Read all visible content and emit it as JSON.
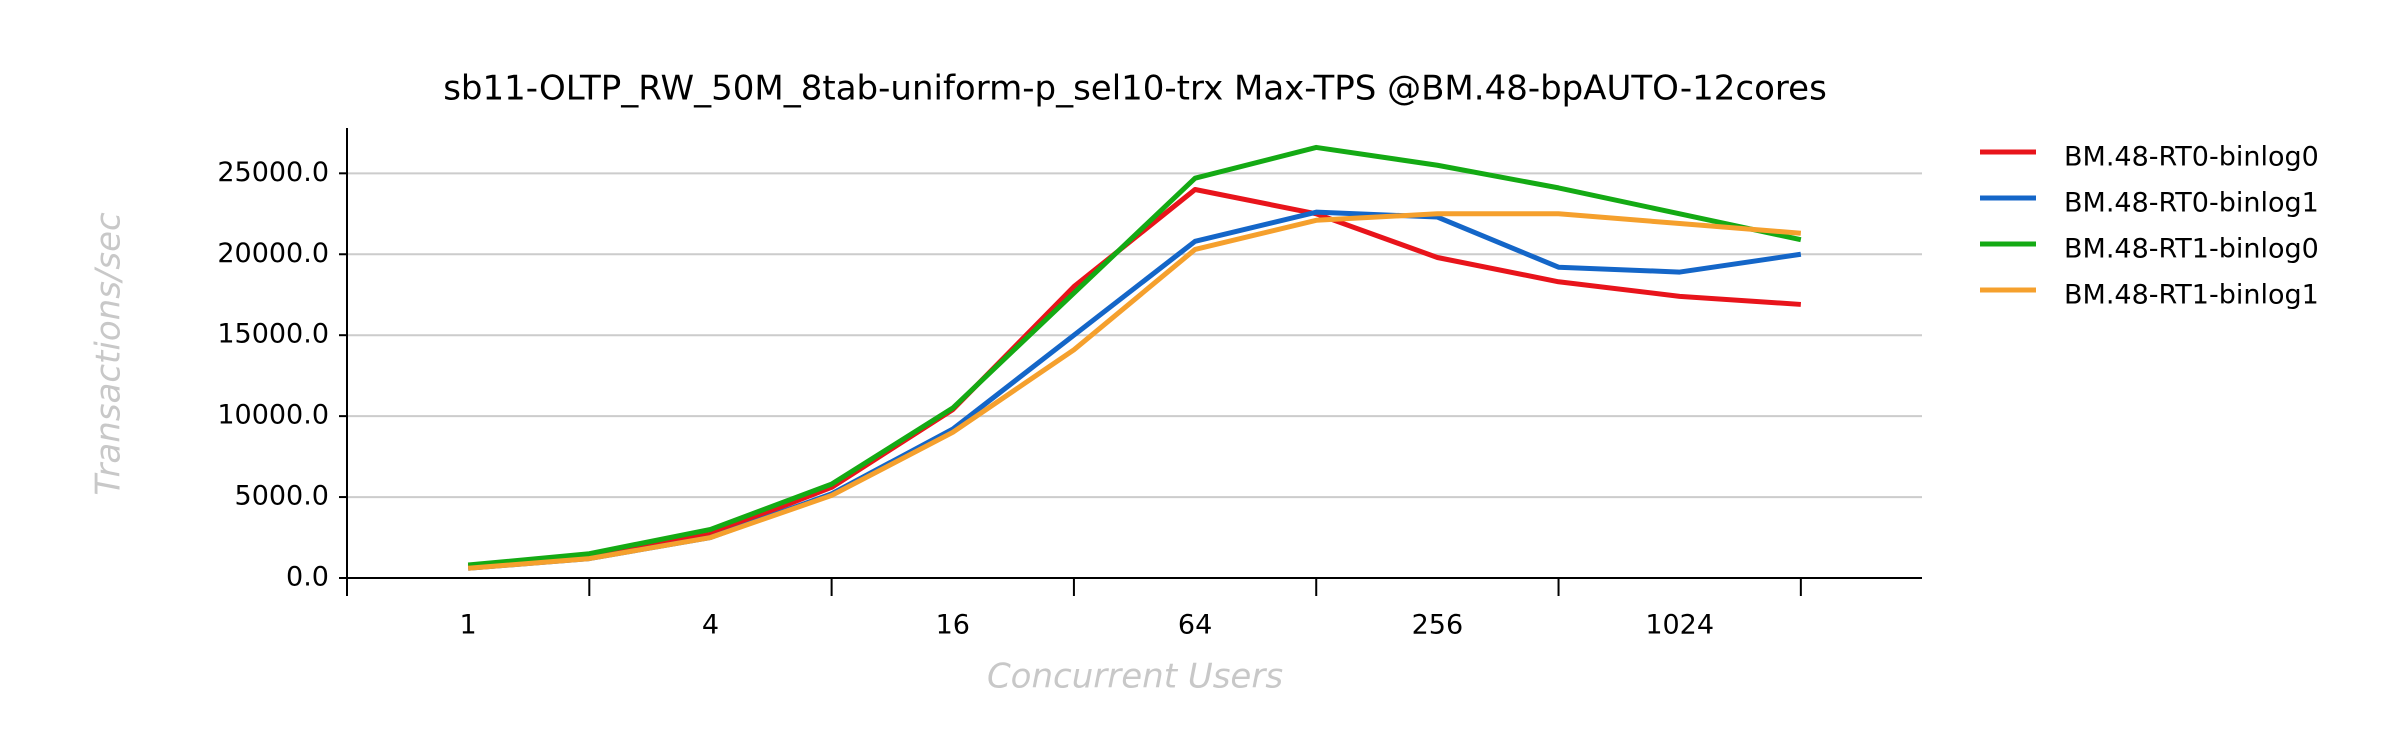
{
  "chart_data": {
    "type": "line",
    "title": "sb11-OLTP_RW_50M_8tab-uniform-p_sel10-trx Max-TPS @BM.48-bpAUTO-12cores",
    "x_label": "Concurrent Users",
    "y_label": "Transactions/sec",
    "categories": [
      "1",
      null,
      "4",
      null,
      "16",
      null,
      "64",
      null,
      "256",
      null,
      "1024",
      null
    ],
    "series": [
      {
        "name": "BM.48-RT0-binlog0",
        "color": "#e8141b",
        "values": [
          700,
          1300,
          2700,
          5600,
          10400,
          18000,
          24000,
          22500,
          19800,
          18300,
          17400,
          16900
        ]
      },
      {
        "name": "BM.48-RT0-binlog1",
        "color": "#1466c8",
        "values": [
          600,
          1200,
          2500,
          5200,
          9200,
          15000,
          20800,
          22600,
          22300,
          19200,
          18900,
          20000
        ]
      },
      {
        "name": "BM.48-RT1-binlog0",
        "color": "#14aa14",
        "values": [
          800,
          1500,
          3000,
          5800,
          10500,
          17600,
          24700,
          26600,
          25500,
          24100,
          22500,
          20900
        ]
      },
      {
        "name": "BM.48-RT1-binlog1",
        "color": "#f5a02d",
        "values": [
          600,
          1200,
          2500,
          5100,
          9000,
          14100,
          20300,
          22100,
          22500,
          22500,
          21900,
          21300
        ]
      }
    ],
    "ylim": [
      0,
      27800
    ],
    "yticks": [
      {
        "value": 0,
        "label": "0.0"
      },
      {
        "value": 5000,
        "label": "5000.0"
      },
      {
        "value": 10000,
        "label": "10000.0"
      },
      {
        "value": 15000,
        "label": "15000.0"
      },
      {
        "value": 20000,
        "label": "20000.0"
      },
      {
        "value": 25000,
        "label": "25000.0"
      }
    ],
    "grid": true,
    "legend": "right"
  }
}
